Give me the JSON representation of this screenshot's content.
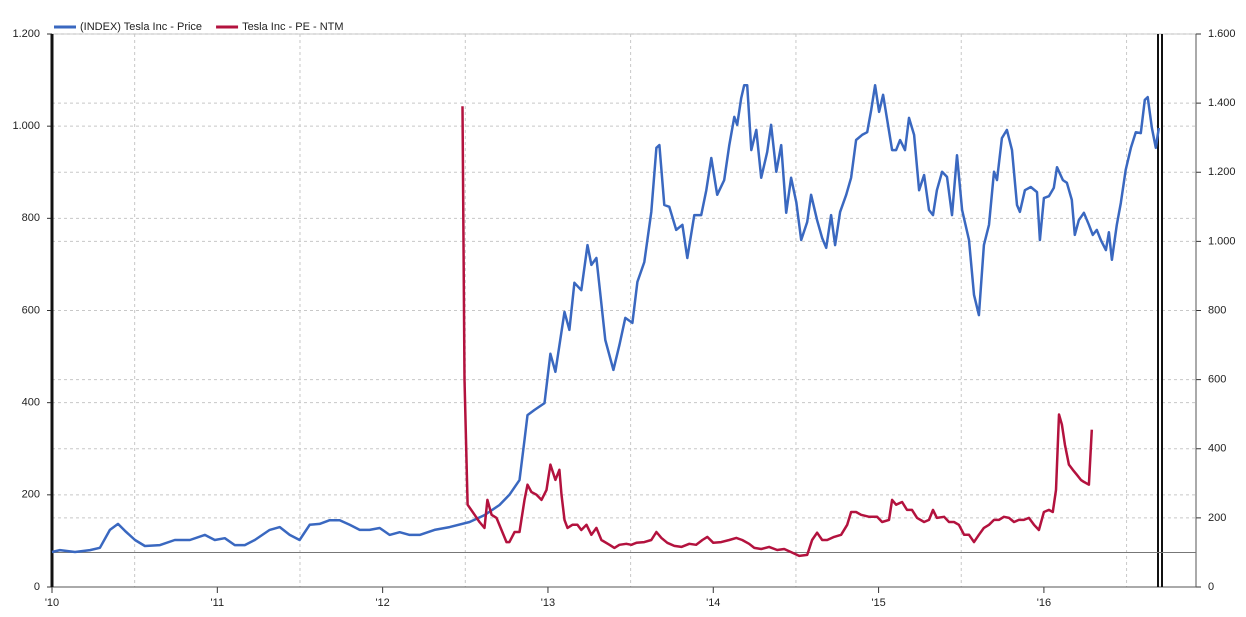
{
  "chart_data": {
    "type": "line",
    "series": [
      {
        "name": "(INDEX) Tesla Inc - Price",
        "color": "#3a68c0",
        "axis": "y",
        "x": [
          2010.0,
          2010.048,
          2010.139,
          2010.23,
          2010.29,
          2010.35,
          2010.399,
          2010.441,
          2010.502,
          2010.562,
          2010.653,
          2010.743,
          2010.834,
          2010.924,
          2010.985,
          2011.045,
          2011.106,
          2011.166,
          2011.227,
          2011.317,
          2011.378,
          2011.438,
          2011.498,
          2011.559,
          2011.619,
          2011.68,
          2011.74,
          2011.801,
          2011.861,
          2011.921,
          2011.982,
          2012.042,
          2012.103,
          2012.163,
          2012.224,
          2012.314,
          2012.405,
          2012.526,
          2012.616,
          2012.707,
          2012.767,
          2012.828,
          2012.858,
          2012.876,
          2012.918,
          2012.979,
          2013.015,
          2013.045,
          2013.1,
          2013.13,
          2013.16,
          2013.202,
          2013.239,
          2013.263,
          2013.293,
          2013.317,
          2013.347,
          2013.396,
          2013.432,
          2013.468,
          2013.511,
          2013.541,
          2013.583,
          2013.625,
          2013.656,
          2013.674,
          2013.704,
          2013.734,
          2013.776,
          2013.813,
          2013.843,
          2013.885,
          2013.927,
          2013.958,
          2013.988,
          2014.024,
          2014.066,
          2014.097,
          2014.127,
          2014.145,
          2014.169,
          2014.187,
          2014.205,
          2014.23,
          2014.26,
          2014.29,
          2014.326,
          2014.35,
          2014.381,
          2014.411,
          2014.441,
          2014.471,
          2014.502,
          2014.532,
          2014.568,
          2014.592,
          2014.628,
          2014.659,
          2014.683,
          2014.713,
          2014.737,
          2014.767,
          2014.804,
          2014.834,
          2014.864,
          2014.9,
          2014.931,
          2014.955,
          2014.979,
          2015.003,
          2015.027,
          2015.057,
          2015.082,
          2015.106,
          2015.13,
          2015.16,
          2015.184,
          2015.215,
          2015.245,
          2015.275,
          2015.305,
          2015.329,
          2015.353,
          2015.384,
          2015.414,
          2015.444,
          2015.474,
          2015.505,
          2015.547,
          2015.577,
          2015.607,
          2015.637,
          2015.668,
          2015.698,
          2015.716,
          2015.746,
          2015.776,
          2015.807,
          2015.837,
          2015.855,
          2015.885,
          2015.921,
          2015.958,
          2015.976,
          2016.0,
          2016.03,
          2016.06,
          2016.079,
          2016.115,
          2016.139,
          2016.169,
          2016.187,
          2016.211,
          2016.242,
          2016.272,
          2016.296,
          2016.32,
          2016.344,
          2016.375,
          2016.393,
          2016.411,
          2016.441,
          2016.465,
          2016.495,
          2016.526,
          2016.556,
          2016.586,
          2016.61,
          2016.628,
          2016.653,
          2016.677,
          2016.695
        ],
        "values": [
          76,
          80,
          76,
          80,
          85,
          124,
          137,
          122,
          102,
          89,
          91,
          102,
          102,
          113,
          102,
          106,
          91,
          91,
          102,
          124,
          130,
          113,
          102,
          135,
          137,
          145,
          145,
          135,
          124,
          124,
          128,
          113,
          119,
          113,
          113,
          124,
          130,
          141,
          156,
          178,
          200,
          232,
          319,
          373,
          384,
          399,
          506,
          467,
          597,
          558,
          660,
          644,
          742,
          699,
          714,
          634,
          536,
          471,
          525,
          584,
          573,
          662,
          705,
          814,
          953,
          959,
          829,
          825,
          775,
          786,
          714,
          807,
          807,
          861,
          931,
          851,
          883,
          959,
          1020,
          1003,
          1061,
          1089,
          1089,
          948,
          992,
          888,
          944,
          1003,
          901,
          959,
          812,
          888,
          835,
          753,
          792,
          851,
          796,
          757,
          736,
          807,
          742,
          814,
          851,
          888,
          970,
          981,
          987,
          1035,
          1089,
          1031,
          1068,
          1003,
          948,
          948,
          970,
          948,
          1018,
          981,
          861,
          894,
          818,
          807,
          861,
          901,
          890,
          807,
          937,
          818,
          753,
          634,
          590,
          742,
          786,
          901,
          883,
          974,
          992,
          948,
          829,
          814,
          861,
          868,
          857,
          753,
          844,
          848,
          866,
          911,
          883,
          877,
          840,
          764,
          796,
          812,
          786,
          764,
          775,
          753,
          731,
          770,
          710,
          786,
          833,
          905,
          953,
          987,
          985,
          1057,
          1063,
          996,
          953,
          996
        ]
      },
      {
        "name": "Tesla Inc - PE - NTM",
        "color": "#b3123e",
        "axis": "y2",
        "x": [
          2012.483,
          2012.495,
          2012.514,
          2012.556,
          2012.586,
          2012.616,
          2012.634,
          2012.659,
          2012.689,
          2012.719,
          2012.749,
          2012.767,
          2012.798,
          2012.828,
          2012.858,
          2012.876,
          2012.9,
          2012.931,
          2012.961,
          2012.991,
          2013.015,
          2013.045,
          2013.069,
          2013.082,
          2013.1,
          2013.118,
          2013.148,
          2013.178,
          2013.202,
          2013.233,
          2013.263,
          2013.293,
          2013.323,
          2013.372,
          2013.402,
          2013.432,
          2013.474,
          2013.505,
          2013.535,
          2013.583,
          2013.625,
          2013.656,
          2013.686,
          2013.722,
          2013.764,
          2013.807,
          2013.855,
          2013.897,
          2013.934,
          2013.964,
          2014.0,
          2014.048,
          2014.097,
          2014.139,
          2014.175,
          2014.217,
          2014.248,
          2014.29,
          2014.338,
          2014.387,
          2014.429,
          2014.471,
          2014.52,
          2014.568,
          2014.598,
          2014.628,
          2014.659,
          2014.689,
          2014.731,
          2014.773,
          2014.81,
          2014.834,
          2014.864,
          2014.894,
          2014.943,
          2014.991,
          2015.021,
          2015.063,
          2015.082,
          2015.106,
          2015.142,
          2015.172,
          2015.202,
          2015.233,
          2015.275,
          2015.305,
          2015.329,
          2015.353,
          2015.396,
          2015.426,
          2015.456,
          2015.486,
          2015.517,
          2015.547,
          2015.577,
          2015.607,
          2015.637,
          2015.668,
          2015.698,
          2015.728,
          2015.758,
          2015.789,
          2015.819,
          2015.849,
          2015.879,
          2015.909,
          2015.94,
          2015.97,
          2016.0,
          2016.03,
          2016.054,
          2016.073,
          2016.091,
          2016.109,
          2016.127,
          2016.151,
          2016.175,
          2016.199,
          2016.224,
          2016.242,
          2016.272,
          2016.29
        ],
        "values": [
          1391,
          601,
          238,
          209,
          188,
          171,
          252,
          209,
          200,
          165,
          130,
          130,
          159,
          159,
          252,
          296,
          275,
          267,
          252,
          281,
          354,
          310,
          339,
          267,
          194,
          171,
          180,
          180,
          165,
          180,
          151,
          171,
          136,
          122,
          113,
          122,
          125,
          122,
          128,
          130,
          136,
          159,
          142,
          128,
          119,
          116,
          125,
          122,
          136,
          145,
          128,
          130,
          136,
          142,
          136,
          125,
          113,
          110,
          116,
          107,
          110,
          101,
          90,
          93,
          136,
          157,
          136,
          136,
          145,
          151,
          180,
          217,
          217,
          209,
          203,
          203,
          188,
          194,
          252,
          238,
          246,
          223,
          223,
          200,
          188,
          194,
          223,
          200,
          203,
          188,
          188,
          180,
          151,
          151,
          130,
          151,
          171,
          180,
          194,
          194,
          203,
          200,
          188,
          194,
          194,
          200,
          180,
          165,
          217,
          223,
          217,
          281,
          499,
          470,
          412,
          354,
          339,
          325,
          310,
          304,
          296,
          455
        ]
      }
    ],
    "xlim": [
      2010,
      2016.92
    ],
    "xticks": [
      {
        "value": 2010,
        "label": "'10"
      },
      {
        "value": 2011,
        "label": "'11"
      },
      {
        "value": 2012,
        "label": "'12"
      },
      {
        "value": 2013,
        "label": "'13"
      },
      {
        "value": 2014,
        "label": "'14"
      },
      {
        "value": 2015,
        "label": "'15"
      },
      {
        "value": 2016,
        "label": "'16"
      }
    ],
    "ylim": [
      0,
      1200
    ],
    "yticks": [
      0,
      200,
      400,
      600,
      800,
      {
        "value": 1000,
        "label": "1.000"
      },
      {
        "value": 1200,
        "label": "1.200"
      }
    ],
    "y2lim": [
      0,
      1600
    ],
    "y2ticks": [
      0,
      200,
      400,
      600,
      800,
      {
        "value": 1000,
        "label": "1.000"
      },
      {
        "value": 1200,
        "label": "1.200"
      },
      {
        "value": 1400,
        "label": "1.400"
      },
      {
        "value": 1600,
        "label": "1.600"
      }
    ],
    "hline": {
      "axis": "y2",
      "value": 100
    },
    "grid": true,
    "legend": "top-left"
  }
}
